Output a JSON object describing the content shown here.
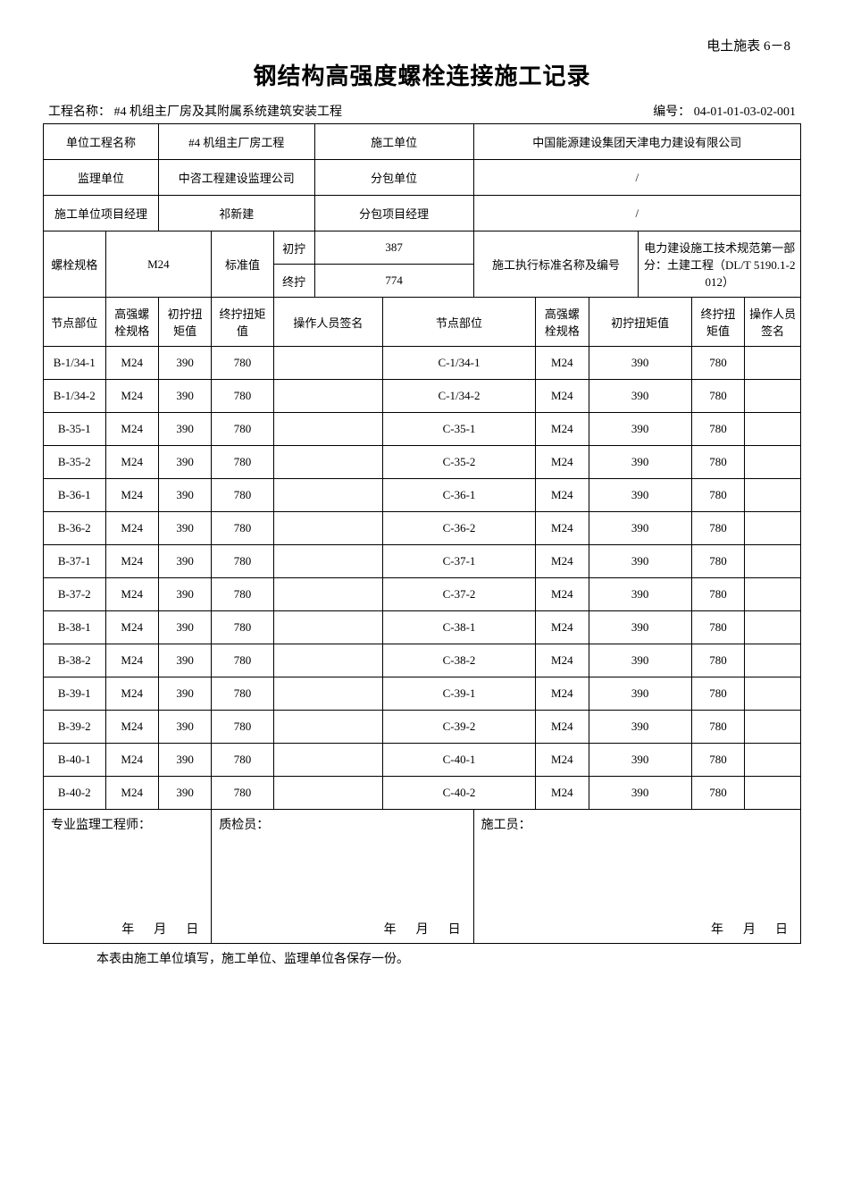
{
  "form_code": "电土施表 6－8",
  "main_title": "钢结构高强度螺栓连接施工记录",
  "project_name_label": "工程名称：",
  "project_name_value": "#4 机组主厂房及其附属系统建筑安装工程",
  "doc_no_label": "编号：",
  "doc_no_value": "04-01-01-03-02-001",
  "labels": {
    "unit_proj_name": "单位工程名称",
    "unit_proj_val": "#4 机组主厂房工程",
    "construction_unit": "施工单位",
    "construction_unit_val": "中国能源建设集团天津电力建设有限公司",
    "supervision_unit": "监理单位",
    "supervision_unit_val": "中咨工程建设监理公司",
    "subcontract_unit": "分包单位",
    "subcontract_unit_val": "/",
    "pm": "施工单位项目经理",
    "pm_val": "祁新建",
    "sub_pm": "分包项目经理",
    "sub_pm_val": "/",
    "bolt_spec": "螺栓规格",
    "bolt_spec_val": "M24",
    "std_val": "标准值",
    "initial": "初拧",
    "initial_val": "387",
    "final": "终拧",
    "final_val": "774",
    "exec_std": "施工执行标准名称及编号",
    "exec_std_val": "电力建设施工技术规范第一部分：土建工程（DL/T 5190.1-2012）",
    "node_pos": "节点部位",
    "spec_col": "高强螺栓规格",
    "init_torque": "初拧扭矩值",
    "final_torque": "终拧扭矩值",
    "op_sign": "操作人员签名",
    "sup_eng": "专业监理工程师：",
    "qc": "质检员：",
    "constructor": "施工员：",
    "date": "年　月　日"
  },
  "left_rows": [
    [
      "B-1/34-1",
      "M24",
      "390",
      "780",
      ""
    ],
    [
      "B-1/34-2",
      "M24",
      "390",
      "780",
      ""
    ],
    [
      "B-35-1",
      "M24",
      "390",
      "780",
      ""
    ],
    [
      "B-35-2",
      "M24",
      "390",
      "780",
      ""
    ],
    [
      "B-36-1",
      "M24",
      "390",
      "780",
      ""
    ],
    [
      "B-36-2",
      "M24",
      "390",
      "780",
      ""
    ],
    [
      "B-37-1",
      "M24",
      "390",
      "780",
      ""
    ],
    [
      "B-37-2",
      "M24",
      "390",
      "780",
      ""
    ],
    [
      "B-38-1",
      "M24",
      "390",
      "780",
      ""
    ],
    [
      "B-38-2",
      "M24",
      "390",
      "780",
      ""
    ],
    [
      "B-39-1",
      "M24",
      "390",
      "780",
      ""
    ],
    [
      "B-39-2",
      "M24",
      "390",
      "780",
      ""
    ],
    [
      "B-40-1",
      "M24",
      "390",
      "780",
      ""
    ],
    [
      "B-40-2",
      "M24",
      "390",
      "780",
      ""
    ]
  ],
  "right_rows": [
    [
      "C-1/34-1",
      "M24",
      "390",
      "780",
      ""
    ],
    [
      "C-1/34-2",
      "M24",
      "390",
      "780",
      ""
    ],
    [
      "C-35-1",
      "M24",
      "390",
      "780",
      ""
    ],
    [
      "C-35-2",
      "M24",
      "390",
      "780",
      ""
    ],
    [
      "C-36-1",
      "M24",
      "390",
      "780",
      ""
    ],
    [
      "C-36-2",
      "M24",
      "390",
      "780",
      ""
    ],
    [
      "C-37-1",
      "M24",
      "390",
      "780",
      ""
    ],
    [
      "C-37-2",
      "M24",
      "390",
      "780",
      ""
    ],
    [
      "C-38-1",
      "M24",
      "390",
      "780",
      ""
    ],
    [
      "C-38-2",
      "M24",
      "390",
      "780",
      ""
    ],
    [
      "C-39-1",
      "M24",
      "390",
      "780",
      ""
    ],
    [
      "C-39-2",
      "M24",
      "390",
      "780",
      ""
    ],
    [
      "C-40-1",
      "M24",
      "390",
      "780",
      ""
    ],
    [
      "C-40-2",
      "M24",
      "390",
      "780",
      ""
    ]
  ],
  "footnote": "本表由施工单位填写，施工单位、监理单位各保存一份。"
}
